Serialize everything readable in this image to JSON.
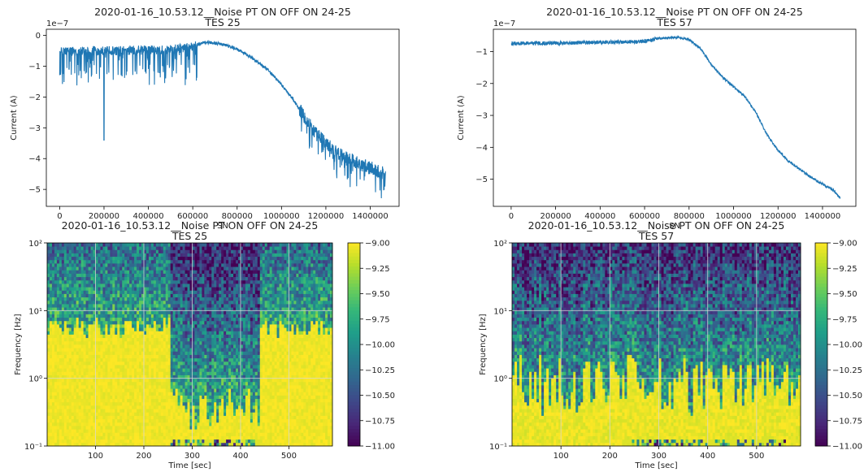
{
  "chart_data": [
    {
      "type": "line",
      "title": "2020-01-16_10.53.12__Noise PT ON OFF ON 24-25",
      "subtitle": "TES 25",
      "xlabel": "SN",
      "ylabel": "Current (A)",
      "y_offset_label": "1e−7",
      "xlim": [
        -60000,
        1530000
      ],
      "ylim": [
        -5.55,
        0.2
      ],
      "x_ticks": [
        0,
        200000,
        400000,
        600000,
        800000,
        1000000,
        1200000,
        1400000
      ],
      "y_ticks": [
        0,
        -1,
        -2,
        -3,
        -4,
        -5
      ],
      "color": "#1f77b4",
      "grid": false,
      "series": [
        {
          "x": [
            0,
            50000,
            100000,
            150000,
            200000,
            250000,
            300000,
            350000,
            400000,
            450000,
            500000,
            550000,
            600000,
            620000,
            650000,
            700000,
            750000,
            800000,
            850000,
            900000,
            950000,
            1000000,
            1050000,
            1100000,
            1150000,
            1200000,
            1250000,
            1300000,
            1350000,
            1400000,
            1450000,
            1470000
          ],
          "y": [
            -0.55,
            -0.5,
            -0.52,
            -0.5,
            -0.5,
            -0.5,
            -0.48,
            -0.48,
            -0.47,
            -0.46,
            -0.45,
            -0.42,
            -0.35,
            -0.3,
            -0.22,
            -0.25,
            -0.32,
            -0.45,
            -0.65,
            -0.9,
            -1.2,
            -1.6,
            -2.05,
            -2.6,
            -3.15,
            -3.5,
            -3.8,
            -4.0,
            -4.15,
            -4.3,
            -4.45,
            -4.5
          ]
        }
      ]
    },
    {
      "type": "line",
      "title": "2020-01-16_10.53.12__Noise PT ON OFF ON 24-25",
      "subtitle": "TES 57",
      "xlabel": "SN",
      "ylabel": "Current (A)",
      "y_offset_label": "1e−7",
      "xlim": [
        -80000,
        1550000
      ],
      "ylim": [
        -5.85,
        -0.3
      ],
      "x_ticks": [
        0,
        200000,
        400000,
        600000,
        800000,
        1000000,
        1200000,
        1400000
      ],
      "y_ticks": [
        -1,
        -2,
        -3,
        -4,
        -5
      ],
      "color": "#1f77b4",
      "grid": false,
      "series": [
        {
          "x": [
            0,
            100000,
            200000,
            300000,
            400000,
            500000,
            600000,
            650000,
            700000,
            750000,
            800000,
            850000,
            900000,
            950000,
            1000000,
            1050000,
            1100000,
            1150000,
            1200000,
            1250000,
            1300000,
            1350000,
            1400000,
            1450000,
            1480000
          ],
          "y": [
            -0.75,
            -0.73,
            -0.74,
            -0.72,
            -0.71,
            -0.7,
            -0.68,
            -0.6,
            -0.57,
            -0.55,
            -0.62,
            -0.9,
            -1.4,
            -1.8,
            -2.1,
            -2.4,
            -2.9,
            -3.6,
            -4.1,
            -4.45,
            -4.7,
            -4.95,
            -5.15,
            -5.35,
            -5.6
          ]
        }
      ]
    },
    {
      "type": "heatmap",
      "title": "2020-01-16_10.53.12__Noise PT ON OFF ON 24-25",
      "subtitle": "TES 25",
      "xlabel": "Time [sec]",
      "ylabel": "Frequency [Hz]",
      "xlim": [
        0,
        590
      ],
      "x_ticks": [
        100,
        200,
        300,
        400,
        500
      ],
      "y_scale": "log",
      "ylim": [
        0.1,
        100
      ],
      "y_ticks": [
        "10⁻¹",
        "10⁰",
        "10¹",
        "10²"
      ],
      "colorbar": {
        "min": -11.0,
        "max": -9.0,
        "colormap": "viridis",
        "ticks": [
          "−9.00",
          "−9.25",
          "−9.50",
          "−9.75",
          "−10.00",
          "−10.25",
          "−10.50",
          "−10.75",
          "−11.00"
        ]
      },
      "quiet_interval_sec": [
        255,
        440
      ],
      "grid": true
    },
    {
      "type": "heatmap",
      "title": "2020-01-16_10.53.12__Noise PT ON OFF ON 24-25",
      "subtitle": "TES 57",
      "xlabel": "Time [sec]",
      "ylabel": "Frequency [Hz]",
      "xlim": [
        0,
        590
      ],
      "x_ticks": [
        100,
        200,
        300,
        400,
        500
      ],
      "y_scale": "log",
      "ylim": [
        0.1,
        100
      ],
      "y_ticks": [
        "10⁻¹",
        "10⁰",
        "10¹",
        "10²"
      ],
      "colorbar": {
        "min": -11.0,
        "max": -9.0,
        "colormap": "viridis",
        "ticks": [
          "−9.00",
          "−9.25",
          "−9.50",
          "−9.75",
          "−10.00",
          "−10.25",
          "−10.50",
          "−10.75",
          "−11.00"
        ]
      },
      "grid": true
    }
  ]
}
